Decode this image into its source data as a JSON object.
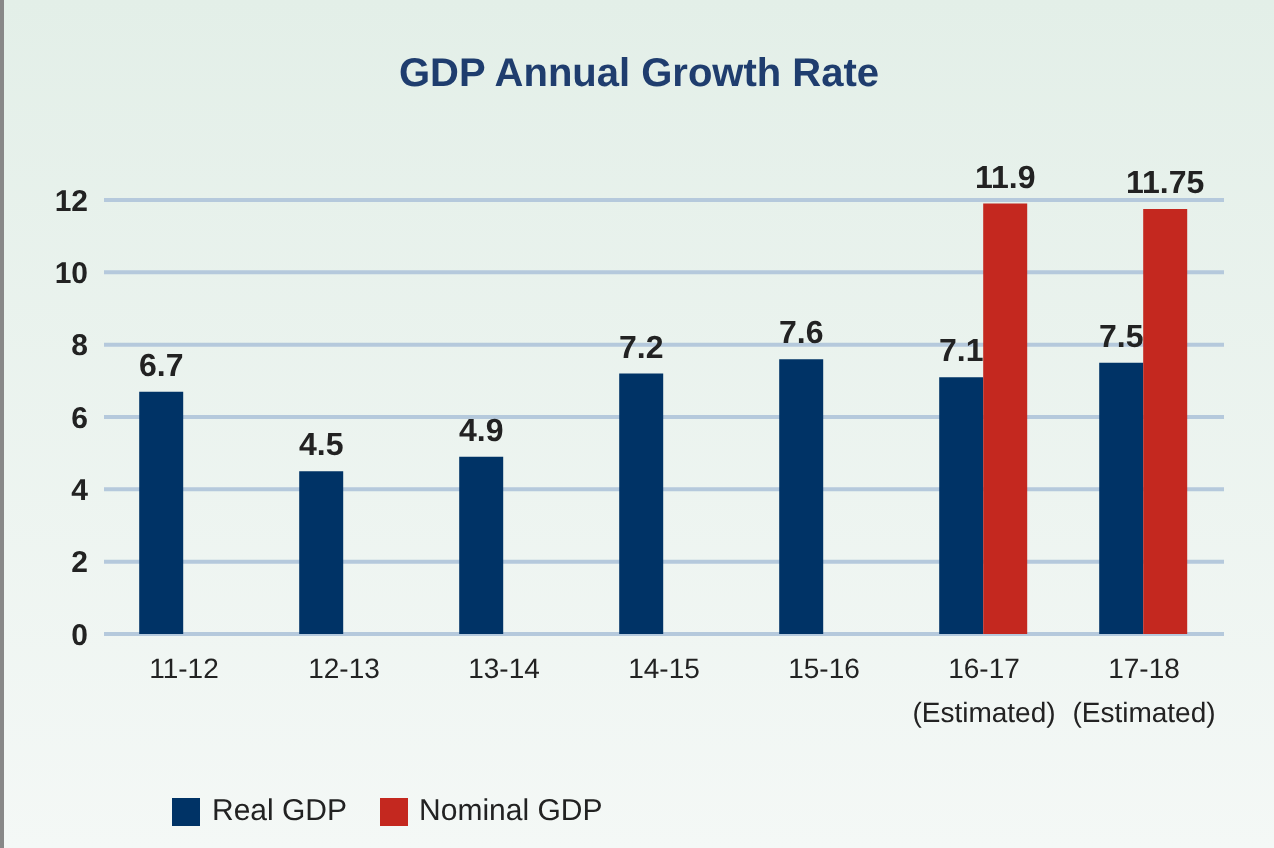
{
  "chart_data": {
    "type": "bar",
    "title": "GDP Annual Growth Rate",
    "categories": [
      "11-12",
      "12-13",
      "13-14",
      "14-15",
      "15-16",
      "16-17\n(Estimated)",
      "17-18\n(Estimated)"
    ],
    "series": [
      {
        "name": "Real GDP",
        "color": "#003366",
        "values": [
          6.7,
          4.5,
          4.9,
          7.2,
          7.6,
          7.1,
          7.5
        ]
      },
      {
        "name": "Nominal GDP",
        "color": "#c4281f",
        "values": [
          null,
          null,
          null,
          null,
          null,
          11.9,
          11.75
        ]
      }
    ],
    "ylim": [
      0,
      12
    ],
    "yticks": [
      0,
      2,
      4,
      6,
      8,
      10,
      12
    ],
    "grid": "y",
    "legend": "bottom left",
    "data_labels": true
  }
}
